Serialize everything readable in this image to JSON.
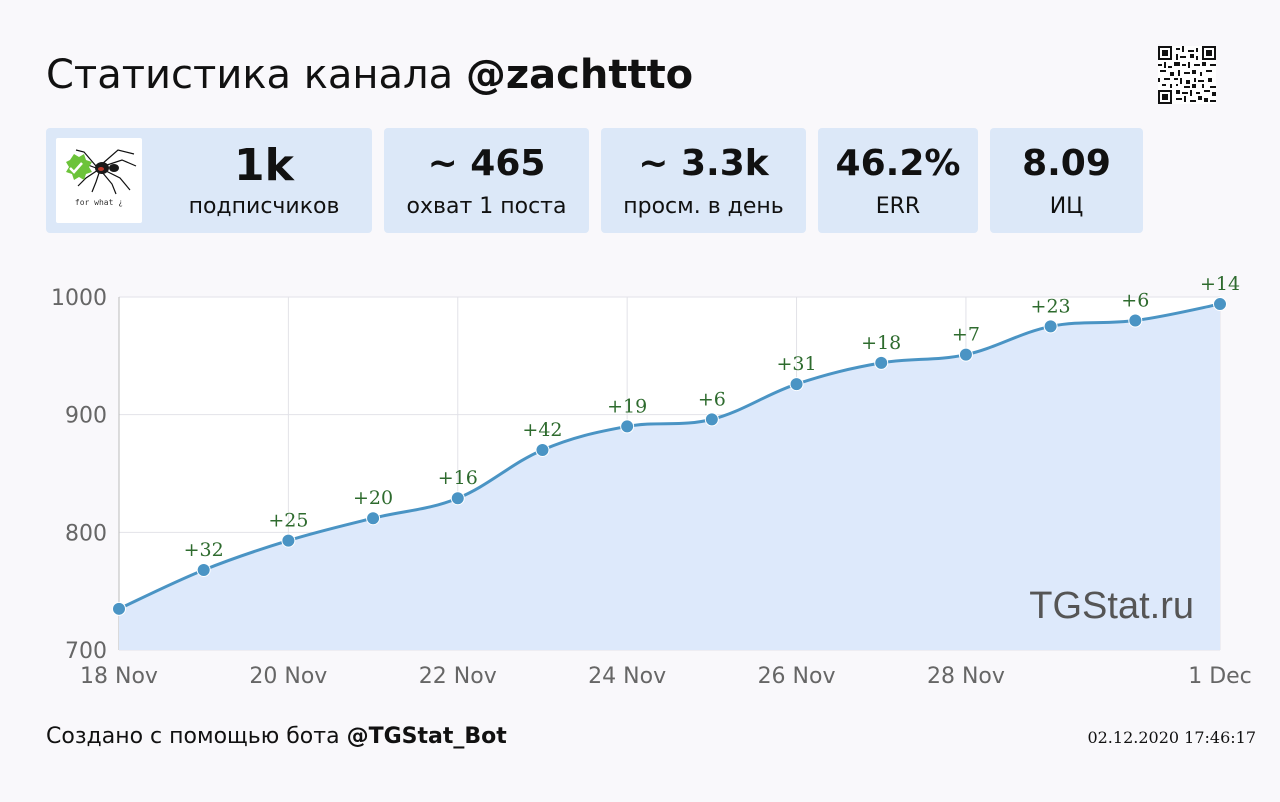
{
  "header": {
    "title_prefix": "Статистика канала",
    "channel_handle": "@zachttto"
  },
  "avatar": {
    "caption": "for what ¿"
  },
  "stats": [
    {
      "value": "1k",
      "label": "подписчиков"
    },
    {
      "value": "~ 465",
      "label": "охват 1 поста"
    },
    {
      "value": "~ 3.3k",
      "label": "просм. в день"
    },
    {
      "value": "46.2%",
      "label": "ERR"
    },
    {
      "value": "8.09",
      "label": "ИЦ"
    }
  ],
  "chart_data": {
    "type": "area",
    "watermark": "TGStat.ru",
    "x": [
      "18 Nov",
      "19 Nov",
      "20 Nov",
      "21 Nov",
      "22 Nov",
      "23 Nov",
      "24 Nov",
      "25 Nov",
      "26 Nov",
      "27 Nov",
      "28 Nov",
      "29 Nov",
      "30 Nov",
      "1 Dec"
    ],
    "series": [
      {
        "values": [
          735,
          768,
          793,
          812,
          829,
          870,
          890,
          896,
          926,
          944,
          951,
          975,
          980,
          994
        ],
        "data_labels": [
          "",
          "+32",
          "+25",
          "+20",
          "+16",
          "+42",
          "+19",
          "+6",
          "+31",
          "+18",
          "+7",
          "+23",
          "+6",
          "+14"
        ]
      }
    ],
    "x_tick_labels": [
      "18 Nov",
      "20 Nov",
      "22 Nov",
      "24 Nov",
      "26 Nov",
      "28 Nov",
      "1 Dec"
    ],
    "x_tick_indices": [
      0,
      2,
      4,
      6,
      8,
      10,
      13
    ],
    "y_ticks": [
      700,
      800,
      900,
      1000
    ],
    "ylim": [
      700,
      1000
    ],
    "grid": true,
    "colors": {
      "line": "#4a94c4",
      "fill": "#dde9fb",
      "label": "#2e6b2e",
      "grid": "#e2e2e8"
    }
  },
  "footer": {
    "created_prefix": "Создано с помощью бота",
    "bot_handle": "@TGStat_Bot",
    "timestamp": "02.12.2020 17:46:17"
  }
}
